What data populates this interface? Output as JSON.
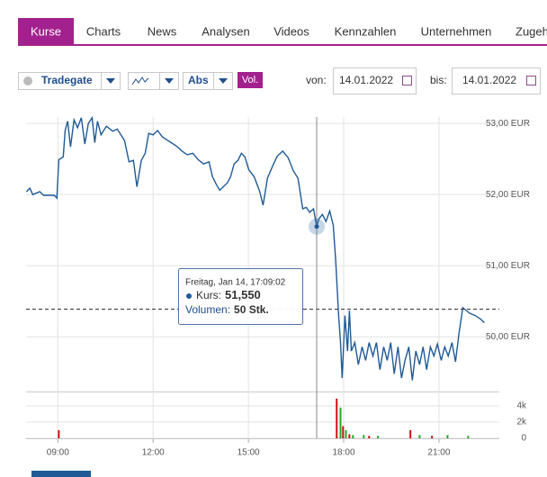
{
  "tabs": [
    "Kurse",
    "Charts",
    "News",
    "Analysen",
    "Videos",
    "Kennzahlen",
    "Unternehmen",
    "Zugeh"
  ],
  "toolbar": {
    "exchange": "Tradegate",
    "mode": "Abs",
    "volume": "Vol.",
    "from_label": "von:",
    "from_date": "14.01.2022",
    "to_label": "bis:",
    "to_date": "14.01.2022"
  },
  "chart_data": [
    {
      "type": "line",
      "xlim": [
        8,
        22.9
      ],
      "xticks": [
        {
          "value": 9,
          "label": "09:00"
        },
        {
          "value": 12,
          "label": "12:00"
        },
        {
          "value": 15,
          "label": "15:00"
        },
        {
          "value": 18,
          "label": "18:00"
        },
        {
          "value": 21,
          "label": "21:00"
        }
      ],
      "ylim": [
        49.27,
        53.09
      ],
      "yticks": [
        {
          "value": 53,
          "label": "53,00 EUR"
        },
        {
          "value": 52,
          "label": "52,00 EUR"
        },
        {
          "value": 51,
          "label": "51,00 EUR"
        },
        {
          "value": 50,
          "label": "50,00 EUR"
        }
      ],
      "grid": true,
      "ref_line": 50.39,
      "crosshair_x": 17.15,
      "tooltip": {
        "title": "Freitag, Jan 14, 17:09:02",
        "price_label": "Kurs:",
        "price": "51,550",
        "volume_label": "Volumen:",
        "volume": "50 Stk."
      },
      "x": [
        8.01,
        8.12,
        8.21,
        8.43,
        8.55,
        8.89,
        8.97,
        9.03,
        9.17,
        9.23,
        9.31,
        9.4,
        9.51,
        9.62,
        9.74,
        9.85,
        9.96,
        10.08,
        10.16,
        10.25,
        10.36,
        10.53,
        10.73,
        10.87,
        11.1,
        11.24,
        11.38,
        11.49,
        11.63,
        11.75,
        11.86,
        12.0,
        12.14,
        12.29,
        12.43,
        12.57,
        12.74,
        12.91,
        13.08,
        13.25,
        13.42,
        13.59,
        13.76,
        13.87,
        13.99,
        14.1,
        14.21,
        14.33,
        14.44,
        14.55,
        14.67,
        14.78,
        14.89,
        15.01,
        15.18,
        15.35,
        15.46,
        15.6,
        15.77,
        15.91,
        16.08,
        16.25,
        16.42,
        16.56,
        16.71,
        16.82,
        16.93,
        17.05,
        17.15,
        17.22,
        17.33,
        17.44,
        17.56,
        17.67,
        17.75,
        17.84,
        17.9,
        17.95,
        18.04,
        18.12,
        18.18,
        18.24,
        18.35,
        18.46,
        18.58,
        18.69,
        18.8,
        18.92,
        19.03,
        19.14,
        19.26,
        19.37,
        19.48,
        19.59,
        19.71,
        19.82,
        19.93,
        20.05,
        20.16,
        20.27,
        20.39,
        20.5,
        20.61,
        20.73,
        20.84,
        20.95,
        21.07,
        21.18,
        21.29,
        21.41,
        21.52,
        21.63,
        21.75,
        21.86,
        21.97,
        22.14,
        22.31,
        22.43
      ],
      "series": [
        {
          "color": "#1f5a96",
          "values": [
            52.04,
            52.09,
            52.0,
            52.04,
            51.99,
            51.99,
            51.95,
            52.49,
            52.53,
            52.9,
            53.03,
            52.67,
            53.05,
            52.94,
            53.08,
            52.71,
            53.0,
            53.08,
            52.73,
            53.03,
            52.84,
            52.96,
            52.89,
            52.92,
            52.76,
            52.46,
            52.48,
            52.11,
            52.48,
            52.58,
            52.86,
            52.84,
            52.9,
            52.81,
            52.77,
            52.73,
            52.68,
            52.61,
            52.56,
            52.58,
            52.49,
            52.43,
            52.46,
            52.25,
            52.14,
            52.06,
            52.11,
            52.16,
            52.25,
            52.43,
            52.48,
            52.58,
            52.53,
            52.35,
            52.25,
            52.05,
            51.85,
            52.23,
            52.41,
            52.54,
            52.61,
            52.52,
            52.33,
            52.23,
            51.8,
            51.82,
            51.75,
            51.8,
            51.55,
            51.66,
            51.72,
            51.62,
            51.77,
            51.57,
            51.06,
            50.3,
            49.92,
            49.42,
            50.3,
            49.8,
            50.37,
            49.8,
            49.92,
            49.61,
            49.86,
            49.67,
            49.92,
            49.73,
            49.92,
            49.54,
            49.86,
            49.67,
            49.92,
            49.48,
            49.86,
            49.42,
            49.67,
            49.86,
            49.39,
            49.8,
            49.61,
            49.86,
            49.54,
            49.86,
            49.73,
            49.9,
            49.67,
            49.86,
            49.73,
            49.92,
            49.65,
            50.05,
            50.41,
            50.37,
            50.33,
            50.3,
            50.25,
            50.2
          ]
        }
      ]
    },
    {
      "type": "bar",
      "xlim": [
        8,
        22.9
      ],
      "ylim": [
        0,
        5780
      ],
      "yticks": [
        {
          "value": 4000,
          "label": "4k"
        },
        {
          "value": 2000,
          "label": "2k"
        },
        0
      ],
      "x": [
        9.03,
        17.78,
        17.9,
        17.98,
        18.07,
        18.18,
        18.29,
        18.63,
        18.8,
        19.08,
        20.1,
        20.39,
        20.78,
        21.27,
        21.92
      ],
      "values": [
        1000,
        4900,
        3800,
        1500,
        1000,
        500,
        400,
        400,
        300,
        300,
        1000,
        400,
        300,
        400,
        300
      ],
      "colors": [
        "#cc1111",
        "#cc1111",
        "#22aa22",
        "#cc1111",
        "#22aa22",
        "#cc1111",
        "#22aa22",
        "#22aa22",
        "#cc1111",
        "#22aa22",
        "#cc1111",
        "#22aa22",
        "#cc1111",
        "#22aa22",
        "#22aa22"
      ]
    }
  ]
}
